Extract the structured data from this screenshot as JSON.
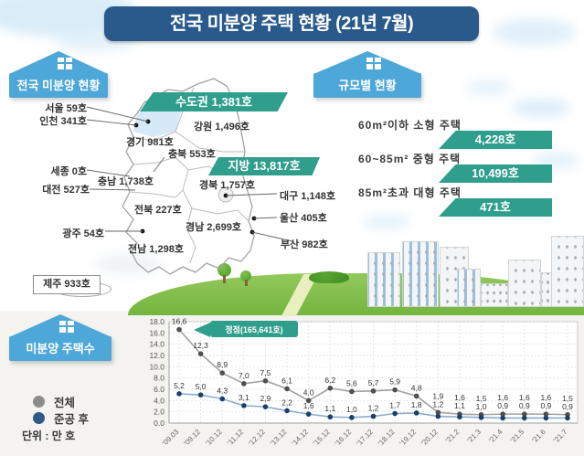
{
  "title": "전국 미분양 주택 현황 (21년 7월)",
  "map_section": {
    "header": "전국 미분양 현황",
    "capital_banner": "수도권 1,381호",
    "regional_banner": "지방 13,817호",
    "labels": {
      "seoul": "서울 59호",
      "incheon": "인천 341호",
      "gyeonggi": "경기 981호",
      "gangwon": "강원 1,496호",
      "chungbuk": "충북 553호",
      "sejong": "세종 0호",
      "daejeon": "대전 527호",
      "chungnam": "충남 1,738호",
      "gyeongbuk": "경북 1,757호",
      "daegu": "대구 1,148호",
      "jeonbuk": "전북 227호",
      "ulsan": "울산 405호",
      "gwangju": "광주 54호",
      "gyeongnam": "경남 2,699호",
      "jeonnam": "전남 1,298호",
      "busan": "부산 982호",
      "jeju": "제주 933호"
    }
  },
  "size_section": {
    "header": "규모별 현황",
    "rows": [
      {
        "label": "60m²이하 소형 주택",
        "value": "4,228호"
      },
      {
        "label": "60~85m² 중형 주택",
        "value": "10,499호"
      },
      {
        "label": "85m²초과 대형 주택",
        "value": "471호"
      }
    ]
  },
  "chart_section": {
    "header": "미분양 주택수",
    "legend": [
      {
        "label": "전체",
        "color": "#8c8c8c"
      },
      {
        "label": "준공 후",
        "color": "#2e5a88"
      }
    ],
    "unit": "단위 : 만 호"
  },
  "chart_data": {
    "type": "line",
    "title": "미분양 주택수",
    "x": [
      "'09.03",
      "'09.12",
      "'10.12",
      "'11.12",
      "'12.12",
      "'13.12",
      "'14.12",
      "'15.12",
      "'16.12",
      "'17.12",
      "'18.12",
      "'19.12",
      "'20.12",
      "'21.2",
      "'21.3",
      "'21.4",
      "'21.5",
      "'21.6",
      "'21.7"
    ],
    "series": [
      {
        "name": "전체",
        "line_color": "#a2a2a2",
        "marker_color": "#4f4f4f",
        "values": [
          16.6,
          12.3,
          8.9,
          7.0,
          7.5,
          6.1,
          4.0,
          6.2,
          5.6,
          5.7,
          5.9,
          4.8,
          1.9,
          1.6,
          1.5,
          1.6,
          1.6,
          1.6,
          1.5
        ]
      },
      {
        "name": "준공 후",
        "line_color": "#8aadce",
        "marker_color": "#1d3f66",
        "values": [
          5.2,
          5.0,
          4.3,
          3.1,
          2.9,
          2.2,
          1.6,
          1.1,
          1.0,
          1.2,
          1.7,
          1.8,
          1.2,
          1.1,
          1.0,
          0.9,
          0.9,
          0.9,
          0.9
        ]
      }
    ],
    "ylim": [
      0,
      18
    ],
    "ytick_step": 2,
    "grid": true,
    "legend_position": "left",
    "annotation": "정점(165,641호)",
    "unit": "단위 : 만 호",
    "accent_color": "#2f9e8d"
  }
}
